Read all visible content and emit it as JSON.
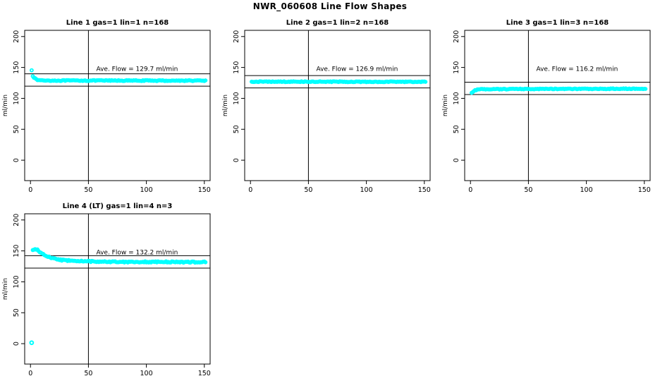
{
  "main_title": "NWR_060608  Line Flow Shapes",
  "colors": {
    "series": "#00ffff",
    "axis": "#000000",
    "background": "#ffffff"
  },
  "axes": {
    "ylabel": "ml/min",
    "x_ticks": [
      0,
      50,
      100,
      150
    ],
    "y_ticks": [
      0,
      50,
      100,
      150,
      200
    ],
    "xlim": [
      -5,
      155
    ],
    "ylim": [
      -33,
      210
    ],
    "grid": false
  },
  "chart_data": [
    {
      "type": "scatter",
      "title": "Line 1 gas=1 lin=1 n=168",
      "annotation": "Ave. Flow =  129.7  ml/min",
      "ave_flow_ml_min": 129.7,
      "vline_x": 50,
      "hlines": [
        139.7,
        119.7
      ],
      "annotation_at": {
        "x": 92,
        "y": 148
      },
      "series": {
        "x_start": 1,
        "x_end": 151,
        "noise": 0.7,
        "anchors": [
          [
            1,
            146
          ],
          [
            2,
            136.5
          ],
          [
            3,
            134
          ],
          [
            4,
            132
          ],
          [
            5,
            130.5
          ],
          [
            7,
            129.5
          ],
          [
            10,
            129
          ],
          [
            20,
            128.8
          ],
          [
            60,
            128.8
          ],
          [
            100,
            128.7
          ],
          [
            151,
            128.7
          ]
        ]
      },
      "extra_points": []
    },
    {
      "type": "scatter",
      "title": "Line 2 gas=1 lin=2 n=168",
      "annotation": "Ave. Flow =  126.9  ml/min",
      "ave_flow_ml_min": 126.9,
      "vline_x": 50,
      "hlines": [
        136.9,
        116.9
      ],
      "annotation_at": {
        "x": 92,
        "y": 148
      },
      "series": {
        "x_start": 1,
        "x_end": 151,
        "noise": 0.6,
        "anchors": [
          [
            1,
            127
          ],
          [
            75,
            126.9
          ],
          [
            151,
            126.8
          ]
        ]
      },
      "extra_points": []
    },
    {
      "type": "scatter",
      "title": "Line 3 gas=1 lin=3 n=168",
      "annotation": "Ave. Flow =  116.2  ml/min",
      "ave_flow_ml_min": 116.2,
      "vline_x": 50,
      "hlines": [
        126.2,
        106.2
      ],
      "annotation_at": {
        "x": 92,
        "y": 148
      },
      "series": {
        "x_start": 1,
        "x_end": 151,
        "noise": 0.6,
        "anchors": [
          [
            1,
            108.5
          ],
          [
            2,
            110.5
          ],
          [
            3,
            112
          ],
          [
            4,
            113
          ],
          [
            6,
            114
          ],
          [
            10,
            114.8
          ],
          [
            30,
            115
          ],
          [
            60,
            115.2
          ],
          [
            100,
            115.4
          ],
          [
            151,
            115.6
          ]
        ]
      },
      "extra_points": []
    },
    {
      "type": "scatter",
      "title": "Line 4 (LT) gas=1 lin=4 n=3",
      "annotation": "Ave. Flow =  132.2  ml/min",
      "ave_flow_ml_min": 132.2,
      "vline_x": 50,
      "hlines": [
        142.2,
        122.2
      ],
      "annotation_at": {
        "x": 92,
        "y": 148
      },
      "series": {
        "x_start": 2,
        "x_end": 151,
        "noise": 1.0,
        "anchors": [
          [
            2,
            152
          ],
          [
            4,
            152.8
          ],
          [
            6,
            151.5
          ],
          [
            8,
            148.5
          ],
          [
            10,
            146
          ],
          [
            12,
            143.5
          ],
          [
            15,
            140.8
          ],
          [
            18,
            138.8
          ],
          [
            22,
            136.8
          ],
          [
            27,
            135.2
          ],
          [
            33,
            134.3
          ],
          [
            40,
            133.6
          ],
          [
            50,
            133.1
          ],
          [
            60,
            132.8
          ],
          [
            70,
            132.5
          ],
          [
            80,
            132.3
          ],
          [
            100,
            132.2
          ],
          [
            120,
            132.1
          ],
          [
            151,
            131.9
          ]
        ]
      },
      "extra_points": [
        [
          1,
          1.5
        ]
      ]
    }
  ]
}
